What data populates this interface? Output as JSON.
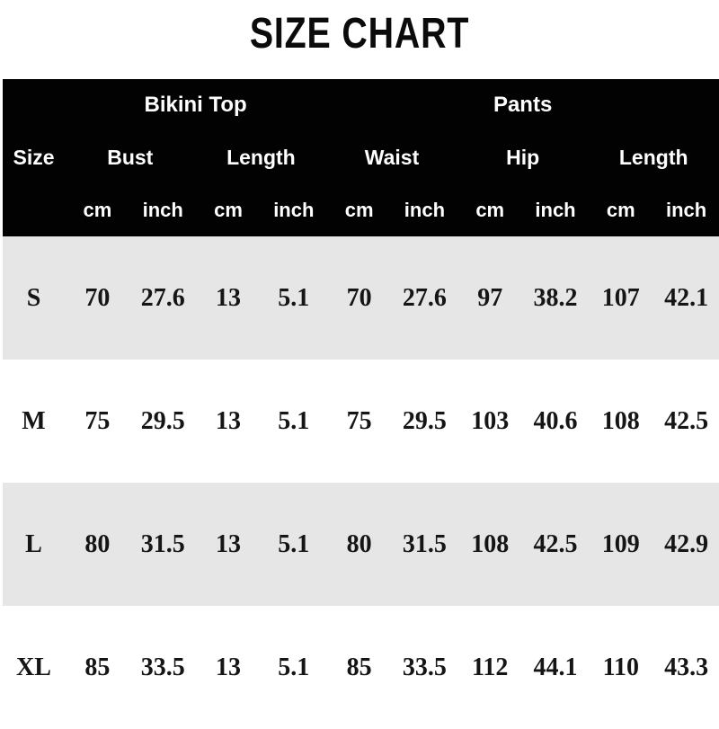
{
  "title": "SIZE CHART",
  "colors": {
    "header_bg": "#020202",
    "header_text": "#ffffff",
    "row_alt_bg": "#e6e6e6",
    "row_bg": "#ffffff",
    "data_text": "#151515"
  },
  "table": {
    "group_headers": [
      {
        "label": "Bikini Top",
        "span": 4
      },
      {
        "label": "Pants",
        "span": 6
      }
    ],
    "measure_headers": [
      {
        "label": "Size",
        "span": 1
      },
      {
        "label": "Bust",
        "span": 2
      },
      {
        "label": "Length",
        "span": 2
      },
      {
        "label": "Waist",
        "span": 2
      },
      {
        "label": "Hip",
        "span": 2
      },
      {
        "label": "Length",
        "span": 2
      }
    ],
    "unit_headers": [
      "cm",
      "inch",
      "cm",
      "inch",
      "cm",
      "inch",
      "cm",
      "inch",
      "cm",
      "inch"
    ],
    "rows": [
      {
        "size": "S",
        "values": [
          "70",
          "27.6",
          "13",
          "5.1",
          "70",
          "27.6",
          "97",
          "38.2",
          "107",
          "42.1"
        ]
      },
      {
        "size": "M",
        "values": [
          "75",
          "29.5",
          "13",
          "5.1",
          "75",
          "29.5",
          "103",
          "40.6",
          "108",
          "42.5"
        ]
      },
      {
        "size": "L",
        "values": [
          "80",
          "31.5",
          "13",
          "5.1",
          "80",
          "31.5",
          "108",
          "42.5",
          "109",
          "42.9"
        ]
      },
      {
        "size": "XL",
        "values": [
          "85",
          "33.5",
          "13",
          "5.1",
          "85",
          "33.5",
          "112",
          "44.1",
          "110",
          "43.3"
        ]
      }
    ]
  },
  "chart_data": {
    "type": "table",
    "title": "SIZE CHART",
    "column_groups": [
      {
        "label": "Bikini Top",
        "columns": [
          "Bust",
          "Length"
        ]
      },
      {
        "label": "Pants",
        "columns": [
          "Waist",
          "Hip",
          "Length"
        ]
      }
    ],
    "columns": [
      "Size",
      "Bust cm",
      "Bust inch",
      "Length cm",
      "Length inch",
      "Waist cm",
      "Waist inch",
      "Hip cm",
      "Hip inch",
      "Length cm",
      "Length inch"
    ],
    "rows": [
      [
        "S",
        70,
        27.6,
        13,
        5.1,
        70,
        27.6,
        97,
        38.2,
        107,
        42.1
      ],
      [
        "M",
        75,
        29.5,
        13,
        5.1,
        75,
        29.5,
        103,
        40.6,
        108,
        42.5
      ],
      [
        "L",
        80,
        31.5,
        13,
        5.1,
        80,
        31.5,
        108,
        42.5,
        109,
        42.9
      ],
      [
        "XL",
        85,
        33.5,
        13,
        5.1,
        85,
        33.5,
        112,
        44.1,
        110,
        43.3
      ]
    ]
  }
}
